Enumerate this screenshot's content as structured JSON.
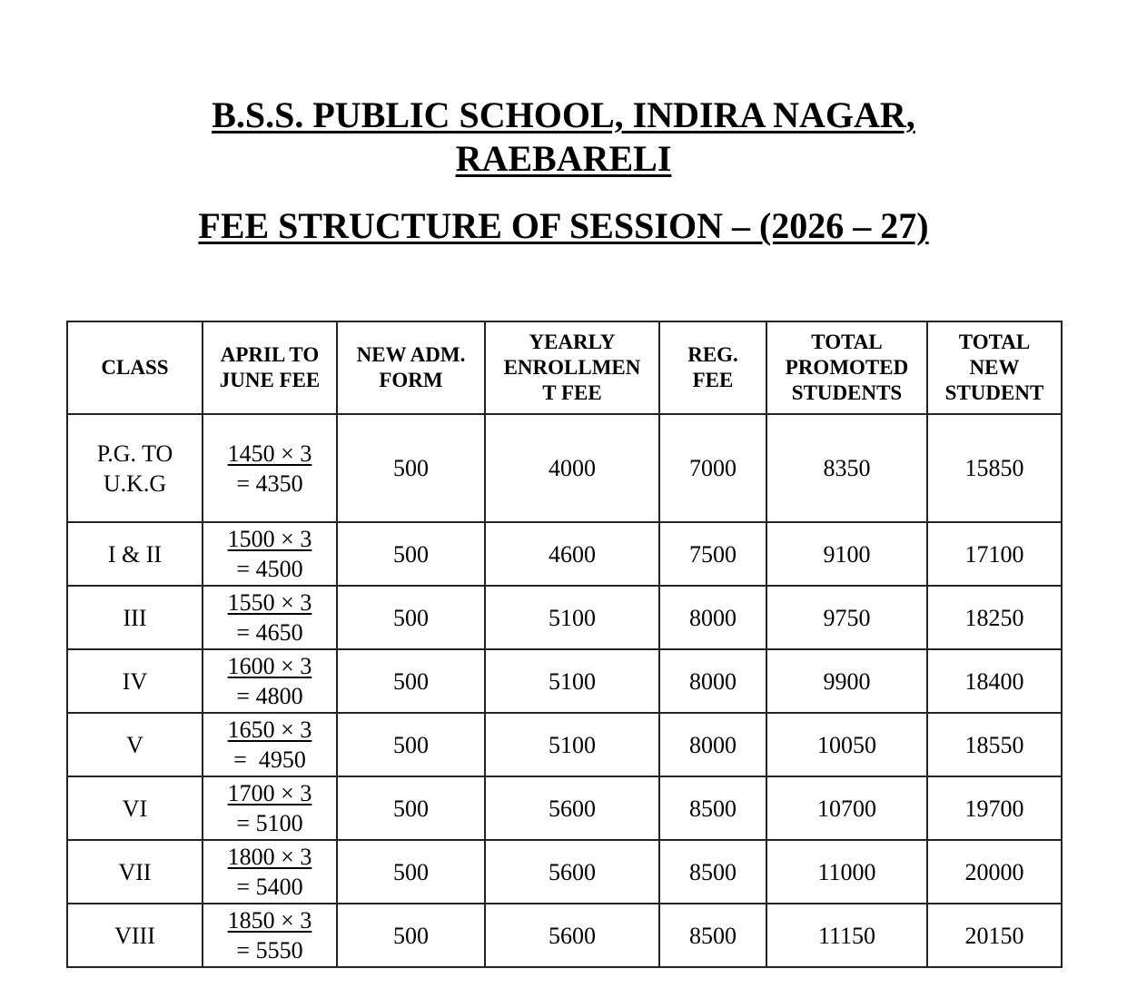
{
  "header": {
    "school_line1": "B.S.S. PUBLIC SCHOOL, INDIRA NAGAR,",
    "school_line2": "RAEBARELI",
    "subtitle": "FEE STRUCTURE OF SESSION – (2026 – 27)"
  },
  "table": {
    "columns": [
      "CLASS",
      "APRIL TO\nJUNE FEE",
      "NEW ADM.\nFORM",
      "YEARLY\nENROLLMEN\nT FEE",
      "REG.\nFEE",
      "TOTAL\nPROMOTED\nSTUDENTS",
      "TOTAL\nNEW\nSTUDENT"
    ],
    "rows": [
      {
        "class": "P.G. TO\nU.K.G",
        "fee_mul": "1450 × 3",
        "fee_eq": "= 4350",
        "adm_form": "500",
        "enrollment": "4000",
        "reg_fee": "7000",
        "total_promoted": "8350",
        "total_new": "15850"
      },
      {
        "class": "I & II",
        "fee_mul": "1500 × 3",
        "fee_eq": "= 4500",
        "adm_form": "500",
        "enrollment": "4600",
        "reg_fee": "7500",
        "total_promoted": "9100",
        "total_new": "17100"
      },
      {
        "class": "III",
        "fee_mul": "1550 × 3",
        "fee_eq": "= 4650",
        "adm_form": "500",
        "enrollment": "5100",
        "reg_fee": "8000",
        "total_promoted": "9750",
        "total_new": "18250"
      },
      {
        "class": "IV",
        "fee_mul": "1600 × 3",
        "fee_eq": "= 4800",
        "adm_form": "500",
        "enrollment": "5100",
        "reg_fee": "8000",
        "total_promoted": "9900",
        "total_new": "18400"
      },
      {
        "class": "V",
        "fee_mul": "1650 × 3",
        "fee_eq": "=  4950",
        "adm_form": "500",
        "enrollment": "5100",
        "reg_fee": "8000",
        "total_promoted": "10050",
        "total_new": "18550"
      },
      {
        "class": "VI",
        "fee_mul": "1700 × 3",
        "fee_eq": "= 5100",
        "adm_form": "500",
        "enrollment": "5600",
        "reg_fee": "8500",
        "total_promoted": "10700",
        "total_new": "19700"
      },
      {
        "class": "VII",
        "fee_mul": "1800 × 3",
        "fee_eq": "= 5400",
        "adm_form": "500",
        "enrollment": "5600",
        "reg_fee": "8500",
        "total_promoted": "11000",
        "total_new": "20000"
      },
      {
        "class": "VIII",
        "fee_mul": "1850 × 3",
        "fee_eq": "= 5550",
        "adm_form": "500",
        "enrollment": "5600",
        "reg_fee": "8500",
        "total_promoted": "11150",
        "total_new": "20150"
      }
    ]
  }
}
